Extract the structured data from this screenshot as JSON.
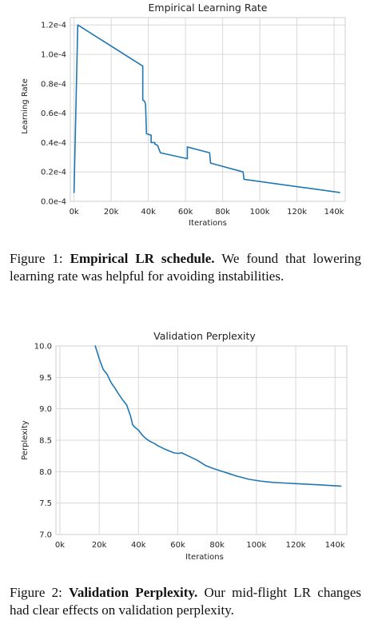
{
  "figure1": {
    "caption": {
      "number": "Figure 1:",
      "bold": "Empirical LR schedule.",
      "text": "We found that lowering learning rate was helpful for avoiding instabilities."
    }
  },
  "figure2": {
    "caption": {
      "number": "Figure 2:",
      "bold": "Validation Perplexity.",
      "text": "Our mid-flight LR changes had clear effects on validation perplexity."
    }
  },
  "chart_data": [
    {
      "type": "line",
      "title": "Empirical Learning Rate",
      "xlabel": "Iterations",
      "ylabel": "Learning Rate",
      "xlim": [
        -2000,
        146000
      ],
      "ylim": [
        0,
        0.000125
      ],
      "xticks": [
        0,
        20000,
        40000,
        60000,
        80000,
        100000,
        120000,
        140000
      ],
      "xtick_labels": [
        "0k",
        "20k",
        "40k",
        "60k",
        "80k",
        "100k",
        "120k",
        "140k"
      ],
      "yticks": [
        0,
        2e-05,
        4e-05,
        6e-05,
        8e-05,
        0.0001,
        0.00012
      ],
      "ytick_labels": [
        "0.0e-4",
        "0.2e-4",
        "0.4e-4",
        "0.6e-4",
        "0.8e-4",
        "1.0e-4",
        "1.2e-4"
      ],
      "grid": true,
      "color": "#1f77b4",
      "series": [
        {
          "x": [
            0,
            2000,
            37000,
            37000,
            38000,
            38500,
            39000,
            41500,
            41500,
            43500,
            43500,
            45000,
            46500,
            46500,
            61000,
            61000,
            73000,
            73500,
            91000,
            91500,
            143000
          ],
          "y": [
            6e-06,
            0.00012,
            9.2e-05,
            6.9e-05,
            6.8e-05,
            6.6e-05,
            4.6e-05,
            4.5e-05,
            4e-05,
            4e-05,
            3.9e-05,
            3.8e-05,
            3.3e-05,
            3.3e-05,
            2.9e-05,
            3.7e-05,
            3.3e-05,
            2.6e-05,
            2e-05,
            1.5e-05,
            6e-06
          ]
        }
      ]
    },
    {
      "type": "line",
      "title": "Validation Perplexity",
      "xlabel": "Iterations",
      "ylabel": "Perplexity",
      "xlim": [
        -2000,
        146000
      ],
      "ylim": [
        7.0,
        10.0
      ],
      "xticks": [
        0,
        20000,
        40000,
        60000,
        80000,
        100000,
        120000,
        140000
      ],
      "xtick_labels": [
        "0k",
        "20k",
        "40k",
        "60k",
        "80k",
        "100k",
        "120k",
        "140k"
      ],
      "yticks": [
        7.0,
        7.5,
        8.0,
        8.5,
        9.0,
        9.5,
        10.0
      ],
      "ytick_labels": [
        "7.0",
        "7.5",
        "8.0",
        "8.5",
        "9.0",
        "9.5",
        "10.0"
      ],
      "grid": true,
      "color": "#1f77b4",
      "series": [
        {
          "x": [
            18000,
            20000,
            22000,
            24000,
            26000,
            28000,
            30000,
            32000,
            34000,
            36000,
            37000,
            38000,
            40000,
            42000,
            44000,
            46000,
            48000,
            50000,
            54000,
            58000,
            60000,
            62000,
            64000,
            66000,
            70000,
            74000,
            78000,
            82000,
            86000,
            90000,
            96000,
            102000,
            108000,
            114000,
            120000,
            126000,
            132000,
            138000,
            143000
          ],
          "y": [
            10.0,
            9.8,
            9.63,
            9.55,
            9.42,
            9.33,
            9.23,
            9.14,
            9.06,
            8.88,
            8.75,
            8.71,
            8.66,
            8.58,
            8.52,
            8.48,
            8.45,
            8.41,
            8.35,
            8.3,
            8.29,
            8.3,
            8.27,
            8.24,
            8.18,
            8.1,
            8.05,
            8.01,
            7.97,
            7.93,
            7.88,
            7.85,
            7.83,
            7.82,
            7.81,
            7.8,
            7.79,
            7.78,
            7.77
          ]
        }
      ]
    }
  ]
}
